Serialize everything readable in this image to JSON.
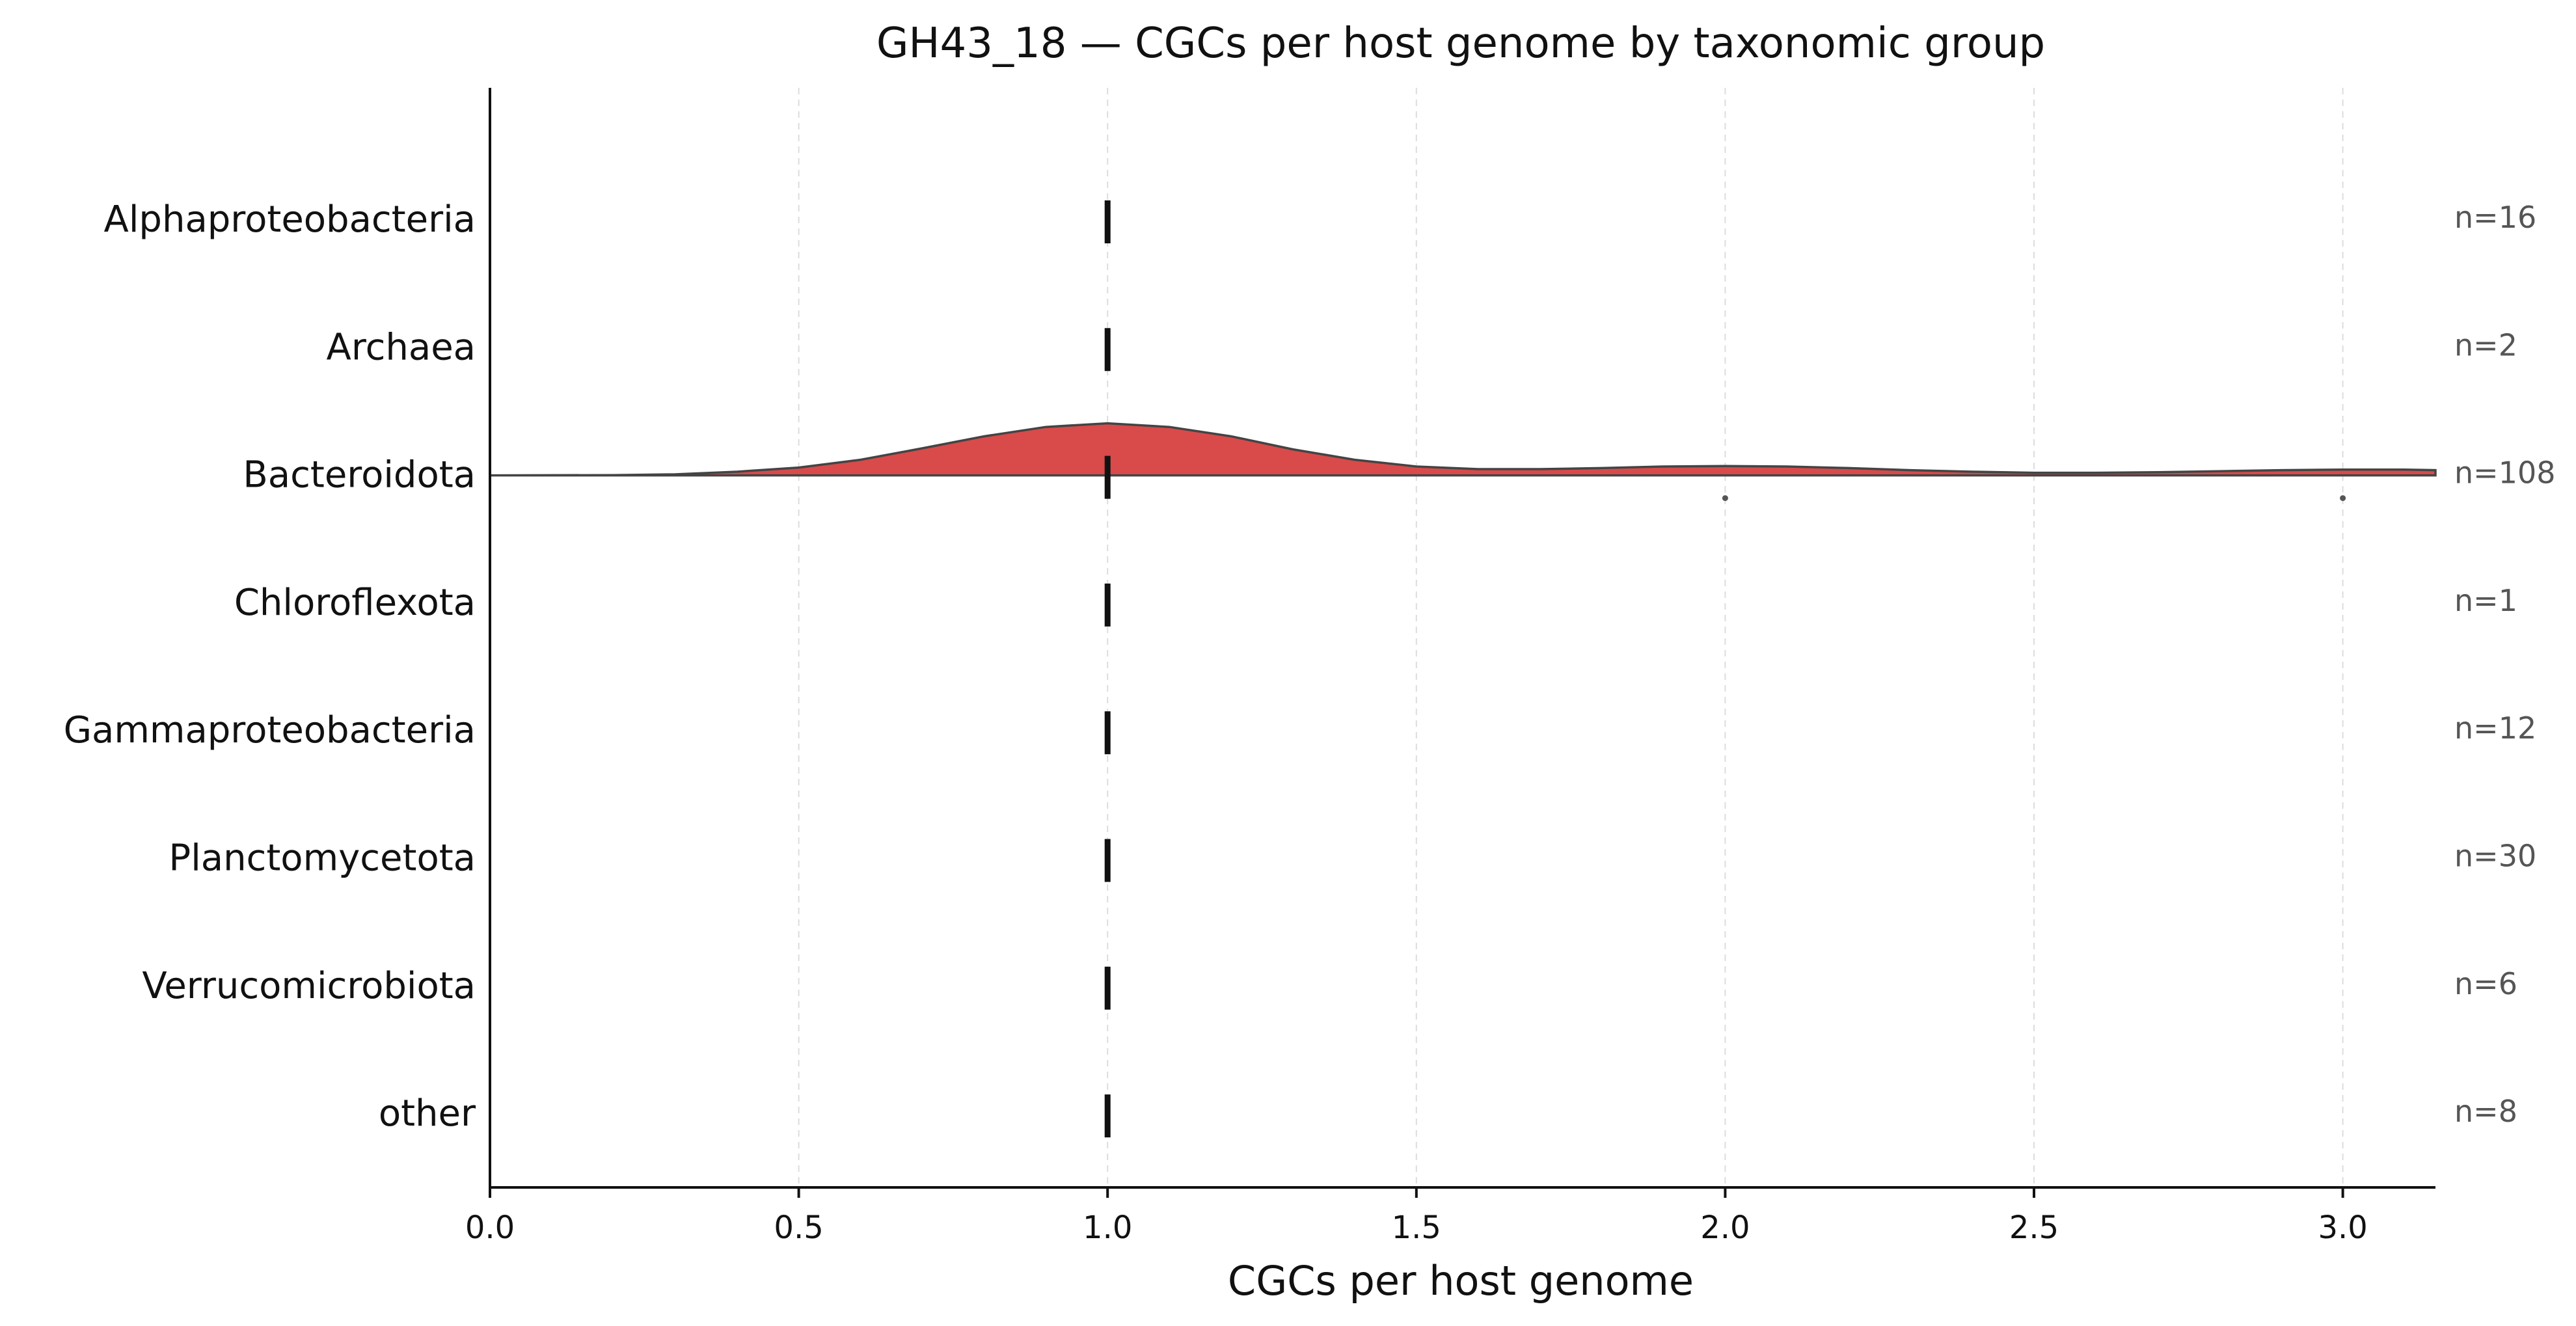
{
  "chart_data": {
    "type": "ridgeline",
    "title": "GH43_18 — CGCs per host genome by taxonomic group",
    "xlabel": "CGCs per host genome",
    "ylabel": "",
    "xlim": [
      0.0,
      3.15
    ],
    "xticks": [
      "0.0",
      "0.5",
      "1.0",
      "1.5",
      "2.0",
      "2.5",
      "3.0"
    ],
    "grid": "vertical dashed",
    "colors": {
      "fill": "#d94a4a",
      "outline": "#444444",
      "median": "#111111",
      "count_text": "#555555"
    },
    "groups": [
      {
        "name": "Alphaproteobacteria",
        "n_label": "n=16",
        "median": 1.0
      },
      {
        "name": "Archaea",
        "n_label": "n=2",
        "median": 1.0
      },
      {
        "name": "Bacteroidota",
        "n_label": "n=108",
        "median": 1.0,
        "outliers": [
          2.0,
          3.0
        ],
        "density": [
          [
            0.0,
            0.0
          ],
          [
            0.2,
            0.005
          ],
          [
            0.3,
            0.02
          ],
          [
            0.4,
            0.07
          ],
          [
            0.5,
            0.15
          ],
          [
            0.6,
            0.3
          ],
          [
            0.7,
            0.52
          ],
          [
            0.8,
            0.75
          ],
          [
            0.9,
            0.93
          ],
          [
            1.0,
            1.0
          ],
          [
            1.1,
            0.93
          ],
          [
            1.2,
            0.75
          ],
          [
            1.3,
            0.5
          ],
          [
            1.4,
            0.3
          ],
          [
            1.5,
            0.17
          ],
          [
            1.6,
            0.12
          ],
          [
            1.7,
            0.12
          ],
          [
            1.8,
            0.14
          ],
          [
            1.9,
            0.17
          ],
          [
            2.0,
            0.18
          ],
          [
            2.1,
            0.17
          ],
          [
            2.2,
            0.14
          ],
          [
            2.3,
            0.1
          ],
          [
            2.4,
            0.07
          ],
          [
            2.5,
            0.05
          ],
          [
            2.6,
            0.05
          ],
          [
            2.7,
            0.06
          ],
          [
            2.8,
            0.08
          ],
          [
            2.9,
            0.1
          ],
          [
            3.0,
            0.11
          ],
          [
            3.1,
            0.11
          ],
          [
            3.15,
            0.1
          ]
        ]
      },
      {
        "name": "Chloroflexota",
        "n_label": "n=1",
        "median": 1.0
      },
      {
        "name": "Gammaproteobacteria",
        "n_label": "n=12",
        "median": 1.0
      },
      {
        "name": "Planctomycetota",
        "n_label": "n=30",
        "median": 1.0
      },
      {
        "name": "Verrucomicrobiota",
        "n_label": "n=6",
        "median": 1.0
      },
      {
        "name": "other",
        "n_label": "n=8",
        "median": 1.0
      }
    ]
  }
}
